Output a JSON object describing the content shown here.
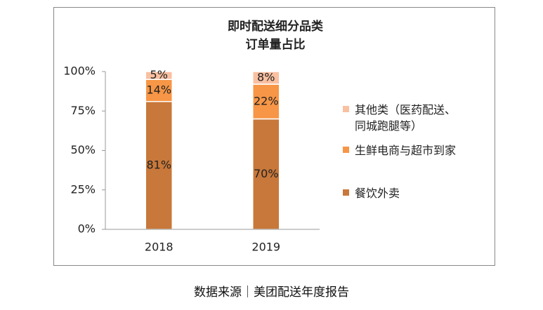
{
  "chart_data": {
    "type": "stacked_bar",
    "title": [
      "即时配送细分品类",
      "订单量占比"
    ],
    "categories": [
      "2018",
      "2019"
    ],
    "series": [
      {
        "name": "餐饮外卖",
        "color": "#c8783a",
        "values": [
          81,
          70
        ],
        "value_labels": [
          "81%",
          "70%"
        ]
      },
      {
        "name": "生鲜电商与超市到家",
        "color": "#f79646",
        "values": [
          14,
          22
        ],
        "value_labels": [
          "14%",
          "22%"
        ]
      },
      {
        "name": "其他类（医药配送、同城跑腿等）",
        "color": "#f9c0a1",
        "values": [
          5,
          8
        ],
        "value_labels": [
          "5%",
          "8%"
        ]
      }
    ],
    "ylim": [
      0,
      100
    ],
    "yticks": [
      {
        "value": 0,
        "label": "0%"
      },
      {
        "value": 25,
        "label": "25%"
      },
      {
        "value": 50,
        "label": "50%"
      },
      {
        "value": 75,
        "label": "75%"
      },
      {
        "value": 100,
        "label": "100%"
      }
    ],
    "legend": "right"
  },
  "caption": "数据来源｜美团配送年度报告"
}
